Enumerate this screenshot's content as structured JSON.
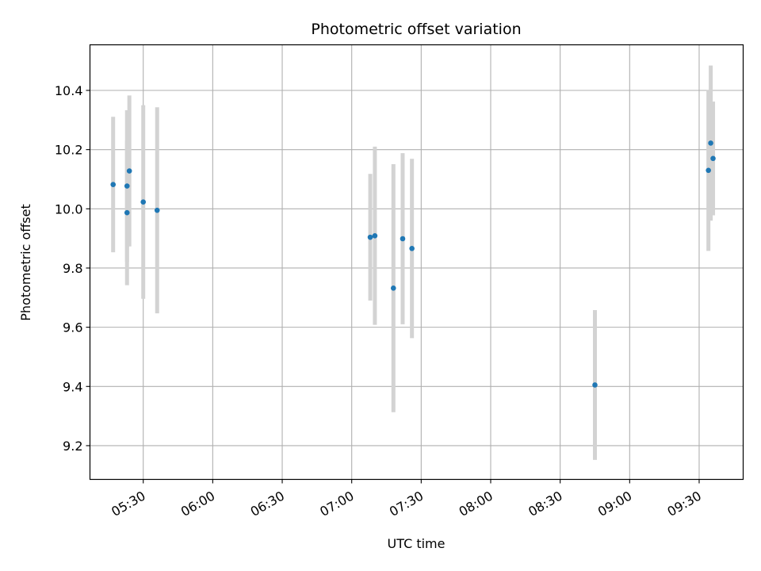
{
  "chart_data": {
    "type": "scatter",
    "title": "Photometric offset variation",
    "xlabel": "UTC time",
    "ylabel": "Photometric offset",
    "x_unit": "time of day (HH:MM)",
    "x_ticks": [
      "05:30",
      "06:00",
      "06:30",
      "07:00",
      "07:30",
      "08:00",
      "08:30",
      "09:00",
      "09:30"
    ],
    "y_ticks": [
      "9.2",
      "9.4",
      "9.6",
      "9.8",
      "10.0",
      "10.2",
      "10.4"
    ],
    "xlim": [
      "05:07",
      "09:49"
    ],
    "ylim": [
      9.086,
      10.554
    ],
    "grid": true,
    "marker_color": "#1f77b4",
    "errorbar_color": "#d3d3d3",
    "points": [
      {
        "x": "05:17",
        "y": 10.082,
        "err": 0.229
      },
      {
        "x": "05:23",
        "y": 9.987,
        "err": 0.245
      },
      {
        "x": "05:23",
        "y": 10.077,
        "err": 0.256
      },
      {
        "x": "05:24",
        "y": 10.128,
        "err": 0.255
      },
      {
        "x": "05:30",
        "y": 10.023,
        "err": 0.327
      },
      {
        "x": "05:36",
        "y": 9.995,
        "err": 0.348
      },
      {
        "x": "07:08",
        "y": 9.904,
        "err": 0.214
      },
      {
        "x": "07:10",
        "y": 9.909,
        "err": 0.301
      },
      {
        "x": "07:18",
        "y": 9.732,
        "err": 0.419
      },
      {
        "x": "07:22",
        "y": 9.899,
        "err": 0.289
      },
      {
        "x": "07:26",
        "y": 9.866,
        "err": 0.303
      },
      {
        "x": "08:45",
        "y": 9.405,
        "err": 0.253
      },
      {
        "x": "09:34",
        "y": 10.13,
        "err": 0.272
      },
      {
        "x": "09:35",
        "y": 10.222,
        "err": 0.262
      },
      {
        "x": "09:36",
        "y": 10.17,
        "err": 0.192
      }
    ]
  }
}
